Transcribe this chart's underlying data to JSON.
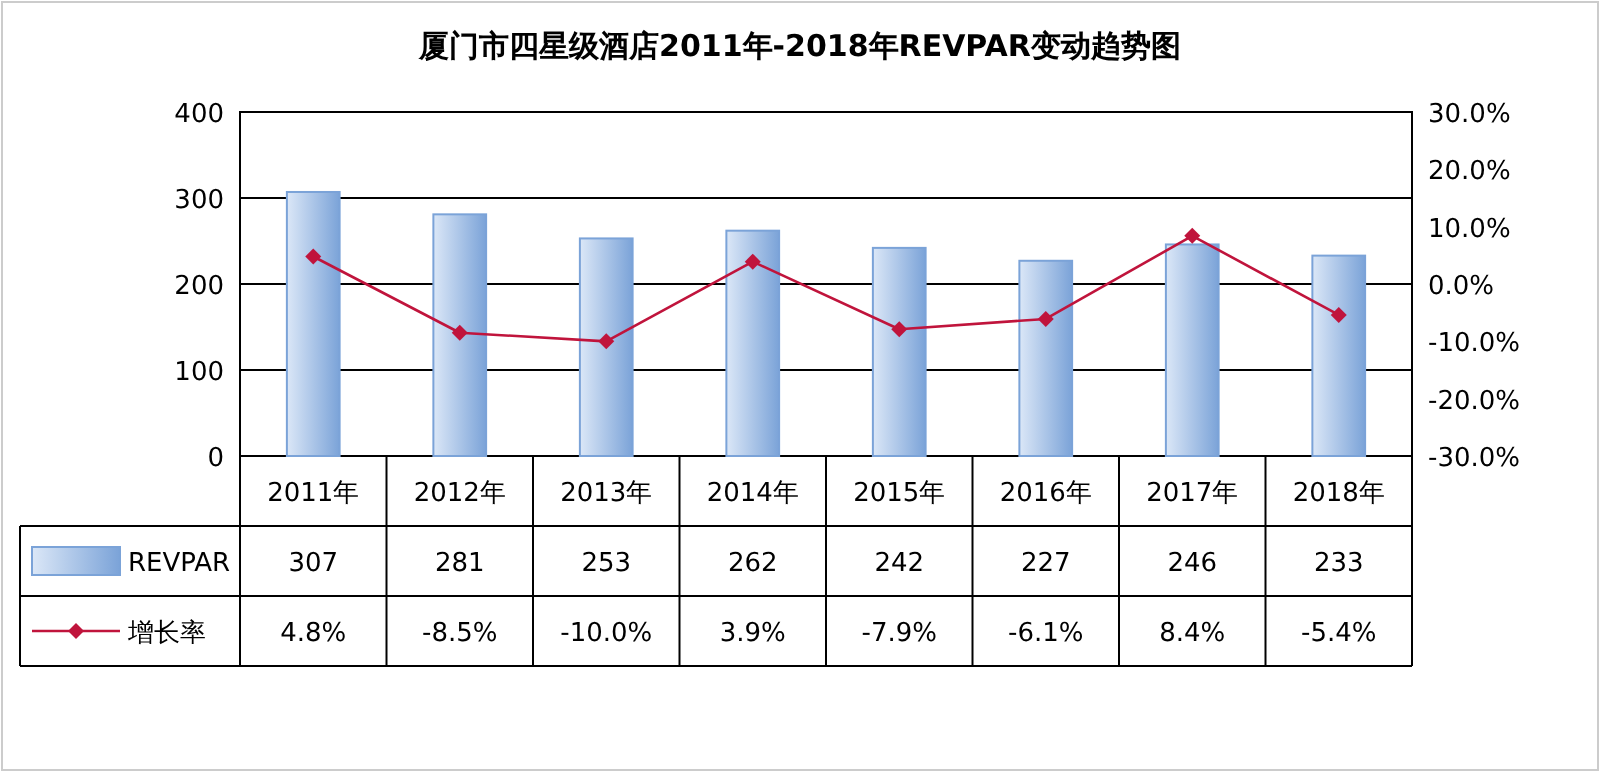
{
  "chart_data": {
    "type": "bar",
    "title": "厦门市四星级酒店2011年-2018年REVPAR变动趋势图",
    "categories": [
      "2011年",
      "2012年",
      "2013年",
      "2014年",
      "2015年",
      "2016年",
      "2017年",
      "2018年"
    ],
    "series": [
      {
        "name": "REVPAR",
        "color": "#7ba3d8",
        "values": [
          307,
          281,
          253,
          262,
          242,
          227,
          246,
          233
        ],
        "value_labels": [
          "307",
          "281",
          "253",
          "262",
          "242",
          "227",
          "246",
          "233"
        ]
      },
      {
        "name": "增长率",
        "type": "line",
        "axis": "y2",
        "color": "#c0143c",
        "marker": "diamond",
        "values": [
          4.8,
          -8.5,
          -10.0,
          3.9,
          -7.9,
          -6.1,
          8.4,
          -5.4
        ],
        "value_labels": [
          "4.8%",
          "-8.5%",
          "-10.0%",
          "3.9%",
          "-7.9%",
          "-6.1%",
          "8.4%",
          "-5.4%"
        ]
      }
    ],
    "ylim": [
      0,
      400
    ],
    "yticks": [
      0,
      100,
      200,
      300,
      400
    ],
    "y2lim": [
      -30,
      30
    ],
    "y2ticks": [
      {
        "value": -30,
        "label": "-30.0%"
      },
      {
        "value": -20,
        "label": "-20.0%"
      },
      {
        "value": -10,
        "label": "-10.0%"
      },
      {
        "value": 0,
        "label": "0.0%"
      },
      {
        "value": 10,
        "label": "10.0%"
      },
      {
        "value": 20,
        "label": "20.0%"
      },
      {
        "value": 30,
        "label": "30.0%"
      }
    ],
    "grid": "y",
    "legend": "bottom"
  }
}
